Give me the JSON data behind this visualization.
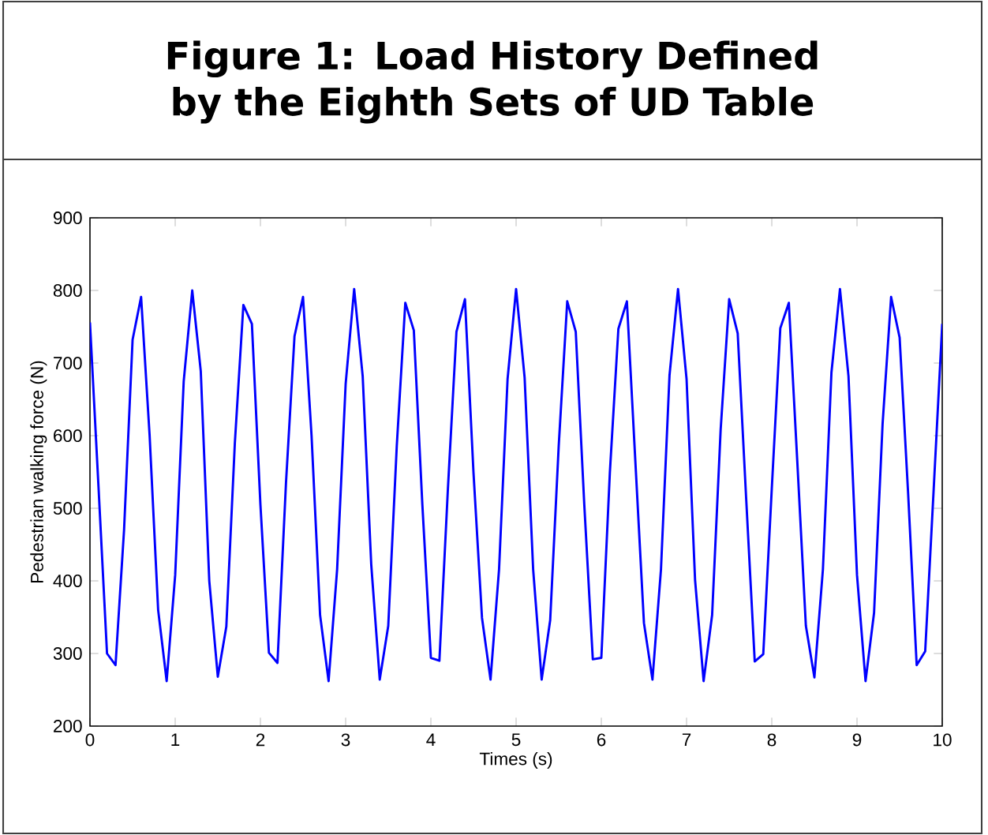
{
  "chart_data": {
    "type": "line",
    "title": "Figure 1: Load History Defined by the Eighth Sets of UD Table",
    "xlabel": "Times (s)",
    "ylabel": "Pedestrian walking force (N)",
    "x": [
      0,
      0.1,
      0.2,
      0.3,
      0.4,
      0.5,
      0.6,
      0.7,
      0.8,
      0.9,
      1,
      1.1,
      1.2,
      1.3,
      1.4,
      1.5,
      1.6,
      1.7,
      1.8,
      1.9,
      2,
      2.1,
      2.2,
      2.3,
      2.4,
      2.5,
      2.6,
      2.7,
      2.8,
      2.9,
      3,
      3.1,
      3.2,
      3.3,
      3.4,
      3.5,
      3.6,
      3.7,
      3.8,
      3.9,
      4,
      4.1,
      4.2,
      4.3,
      4.4,
      4.5,
      4.6,
      4.7,
      4.8,
      4.9,
      5,
      5.1,
      5.2,
      5.3,
      5.4,
      5.5,
      5.6,
      5.7,
      5.8,
      5.9,
      6,
      6.1,
      6.2,
      6.3,
      6.4,
      6.5,
      6.6,
      6.7,
      6.8,
      6.9,
      7,
      7.1,
      7.2,
      7.3,
      7.4,
      7.5,
      7.6,
      7.7,
      7.8,
      7.9,
      8,
      8.1,
      8.2,
      8.3,
      8.4,
      8.5,
      8.6,
      8.7,
      8.8,
      8.9,
      9,
      9.1,
      9.2,
      9.3,
      9.4,
      9.5,
      9.6,
      9.7,
      9.8,
      9.9,
      10
    ],
    "series": [
      {
        "color": "#0000ff",
        "values": [
          756,
          530,
          300,
          284,
          470,
          732,
          791,
          600,
          360,
          262,
          408,
          675,
          800,
          689,
          400,
          268,
          337,
          590,
          780,
          754,
          505,
          301,
          287,
          535,
          737,
          791,
          600,
          353,
          262,
          416,
          671,
          802,
          682,
          423,
          264,
          338,
          586,
          783,
          745,
          505,
          294,
          290,
          527,
          743,
          788,
          549,
          349,
          264,
          416,
          678,
          802,
          680,
          416,
          264,
          346,
          586,
          785,
          743,
          505,
          292,
          294,
          549,
          747,
          785,
          563,
          342,
          264,
          416,
          683,
          802,
          678,
          401,
          262,
          353,
          608,
          788,
          741,
          512,
          289,
          299,
          527,
          748,
          783,
          563,
          338,
          267,
          416,
          687,
          802,
          682,
          408,
          262,
          356,
          616,
          791,
          735,
          520,
          284,
          303,
          527,
          754
        ]
      }
    ],
    "xlim": [
      0,
      10
    ],
    "ylim": [
      200,
      900
    ],
    "xticks": [
      0,
      1,
      2,
      3,
      4,
      5,
      6,
      7,
      8,
      9,
      10
    ],
    "yticks": [
      200,
      300,
      400,
      500,
      600,
      700,
      800,
      900
    ],
    "grid": false,
    "marker": "none",
    "line_style": "solid"
  }
}
